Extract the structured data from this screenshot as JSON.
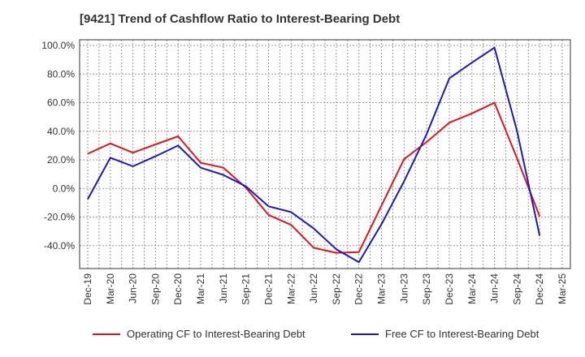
{
  "title": "[9421]  Trend of Cashflow Ratio to Interest-Bearing Debt",
  "chart_data": {
    "type": "line",
    "title": "[9421]  Trend of Cashflow Ratio to Interest-Bearing Debt",
    "xlabel": "",
    "ylabel": "",
    "categories": [
      "Dec-19",
      "Mar-20",
      "Jun-20",
      "Sep-20",
      "Dec-20",
      "Mar-21",
      "Jun-21",
      "Sep-21",
      "Dec-21",
      "Mar-22",
      "Jun-22",
      "Sep-22",
      "Dec-22",
      "Mar-23",
      "Jun-23",
      "Sep-23",
      "Dec-23",
      "Mar-24",
      "Jun-24",
      "Sep-24",
      "Dec-24",
      "Mar-25"
    ],
    "x_tick_labels": [
      "Dec-19",
      "Mar-20",
      "Jun-20",
      "Sep-20",
      "Dec-20",
      "Mar-21",
      "Jun-21",
      "Sep-21",
      "Dec-21",
      "Mar-22",
      "Jun-22",
      "Sep-22",
      "Dec-22",
      "Mar-23",
      "Jun-23",
      "Sep-23",
      "Dec-23",
      "Mar-24",
      "Jun-24",
      "Sep-24",
      "Dec-24",
      "Mar-25"
    ],
    "y_ticks": [
      100,
      80,
      60,
      40,
      20,
      0,
      -20,
      -40
    ],
    "y_tick_labels": [
      "100.0%",
      "80.0%",
      "60.0%",
      "40.0%",
      "20.0%",
      "0.0%",
      "-20.0%",
      "-40.0%"
    ],
    "ylim": [
      -56,
      104
    ],
    "grid": true,
    "legend_position": "bottom",
    "series": [
      {
        "name": "Operating CF to Interest-Bearing Debt",
        "color": "#e8141b",
        "values": [
          24.3,
          31.5,
          25.0,
          30.8,
          36.5,
          18.0,
          14.5,
          0.5,
          -18.5,
          -25.5,
          -41.5,
          -45.0,
          -44.5,
          -12.0,
          20.5,
          32.5,
          46.0,
          52.5,
          60.0,
          21.0,
          -19.5,
          null
        ]
      },
      {
        "name": "Free CF to Interest-Bearing Debt",
        "color": "#1818cf",
        "values": [
          -7.5,
          21.5,
          15.5,
          22.5,
          30.0,
          14.5,
          9.5,
          1.5,
          -12.5,
          -16.5,
          -28.0,
          -42.5,
          -51.5,
          -25.0,
          5.0,
          38.0,
          77.0,
          88.0,
          98.5,
          40.0,
          -33.0,
          null
        ]
      }
    ]
  }
}
